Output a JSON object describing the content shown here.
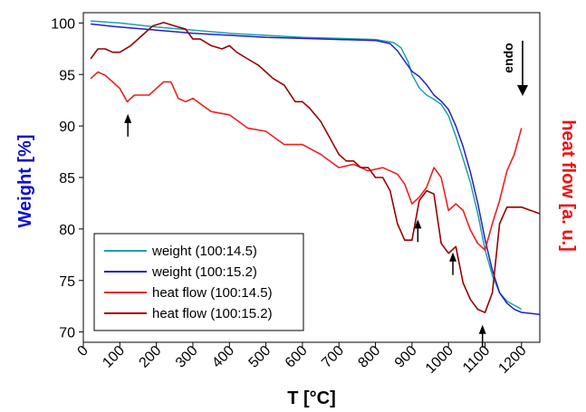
{
  "chart_data": {
    "type": "line",
    "xlabel": "T [°C]",
    "ylabel": "Weight [%]",
    "y2label": "heat flow [a. u.]",
    "xlim": [
      0,
      1250
    ],
    "ylim": [
      69,
      101
    ],
    "y2lim": [
      0,
      100
    ],
    "x_ticks": [
      0,
      100,
      200,
      300,
      400,
      500,
      600,
      700,
      800,
      900,
      1000,
      1100,
      1200
    ],
    "y_ticks": [
      70,
      75,
      80,
      85,
      90,
      95,
      100
    ],
    "grid": false,
    "legend_position": "bottom-left",
    "annotation": "endo",
    "colors": {
      "weight_145": "#20A0A8",
      "weight_152": "#2020CC",
      "heat_145": "#EE2020",
      "heat_152": "#990000",
      "ylabel": "#1010CC",
      "y2label": "#EE1111"
    },
    "series": [
      {
        "name": "weight (100:14.5)",
        "axis": "left",
        "color": "#20A0A8",
        "x": [
          20,
          100,
          200,
          300,
          400,
          500,
          600,
          700,
          800,
          850,
          870,
          890,
          900,
          920,
          940,
          960,
          980,
          1000,
          1020,
          1040,
          1060,
          1080,
          1100,
          1120,
          1140,
          1160,
          1180,
          1200
        ],
        "y": [
          100.2,
          100.0,
          99.6,
          99.3,
          99.0,
          98.8,
          98.6,
          98.5,
          98.4,
          98.1,
          97.6,
          96.2,
          95.0,
          93.7,
          93.0,
          92.6,
          92.1,
          91.0,
          89.0,
          86.8,
          84.5,
          81.5,
          78.0,
          75.5,
          73.8,
          73.0,
          72.6,
          72.2
        ]
      },
      {
        "name": "weight (100:15.2)",
        "axis": "left",
        "color": "#2020CC",
        "x": [
          20,
          100,
          200,
          300,
          400,
          500,
          600,
          700,
          800,
          840,
          860,
          880,
          900,
          920,
          940,
          960,
          980,
          1000,
          1020,
          1040,
          1060,
          1080,
          1100,
          1120,
          1140,
          1160,
          1180,
          1200,
          1250
        ],
        "y": [
          99.9,
          99.6,
          99.3,
          99.0,
          98.8,
          98.6,
          98.5,
          98.4,
          98.3,
          98.0,
          97.3,
          96.3,
          95.3,
          94.8,
          94.0,
          93.0,
          92.4,
          91.6,
          90.0,
          88.0,
          85.5,
          82.5,
          79.0,
          76.0,
          73.8,
          72.8,
          72.2,
          71.9,
          71.7
        ]
      },
      {
        "name": "heat flow (100:14.5)",
        "axis": "right",
        "color": "#EE2020",
        "x": [
          20,
          40,
          60,
          80,
          100,
          120,
          140,
          160,
          180,
          200,
          220,
          240,
          260,
          280,
          300,
          350,
          400,
          450,
          500,
          550,
          600,
          650,
          700,
          740,
          780,
          820,
          840,
          860,
          880,
          900,
          920,
          940,
          960,
          980,
          1000,
          1020,
          1040,
          1060,
          1080,
          1100,
          1120,
          1140,
          1160,
          1180,
          1200
        ],
        "y": [
          80,
          82,
          81,
          79,
          77,
          73,
          75,
          75,
          75,
          77,
          79,
          79,
          74,
          73,
          74,
          70,
          69,
          65,
          64,
          60,
          60,
          57,
          53,
          54,
          52,
          53,
          52,
          51,
          48,
          42,
          44,
          47,
          53,
          50,
          40,
          42,
          40,
          34,
          30,
          28,
          36,
          43,
          52,
          57,
          65
        ]
      },
      {
        "name": "heat flow (100:15.2)",
        "axis": "right",
        "color": "#990000",
        "x": [
          20,
          40,
          60,
          80,
          100,
          130,
          160,
          190,
          220,
          250,
          280,
          300,
          320,
          350,
          380,
          400,
          420,
          450,
          480,
          500,
          520,
          550,
          580,
          600,
          620,
          650,
          680,
          700,
          720,
          740,
          760,
          780,
          800,
          820,
          840,
          860,
          880,
          900,
          920,
          940,
          960,
          980,
          1000,
          1020,
          1040,
          1060,
          1080,
          1100,
          1120,
          1140,
          1160,
          1180,
          1200,
          1250
        ],
        "y": [
          86,
          89,
          89,
          88,
          88,
          90,
          93,
          96,
          97,
          96,
          95,
          92,
          92,
          90,
          89,
          90,
          88,
          86,
          84,
          82,
          80,
          78,
          73,
          73,
          71,
          67,
          61,
          57,
          55,
          55,
          53,
          53,
          50,
          50,
          46,
          36,
          31,
          31,
          43,
          46,
          45,
          30,
          27,
          29,
          18,
          13,
          10,
          9,
          15,
          36,
          41,
          41,
          41,
          39
        ]
      }
    ],
    "arrows": [
      {
        "x": 122,
        "y_right": 69
      },
      {
        "x": 916,
        "y_right": 37
      },
      {
        "x": 1012,
        "y_right": 27
      },
      {
        "x": 1093,
        "y_right": 5
      }
    ]
  }
}
